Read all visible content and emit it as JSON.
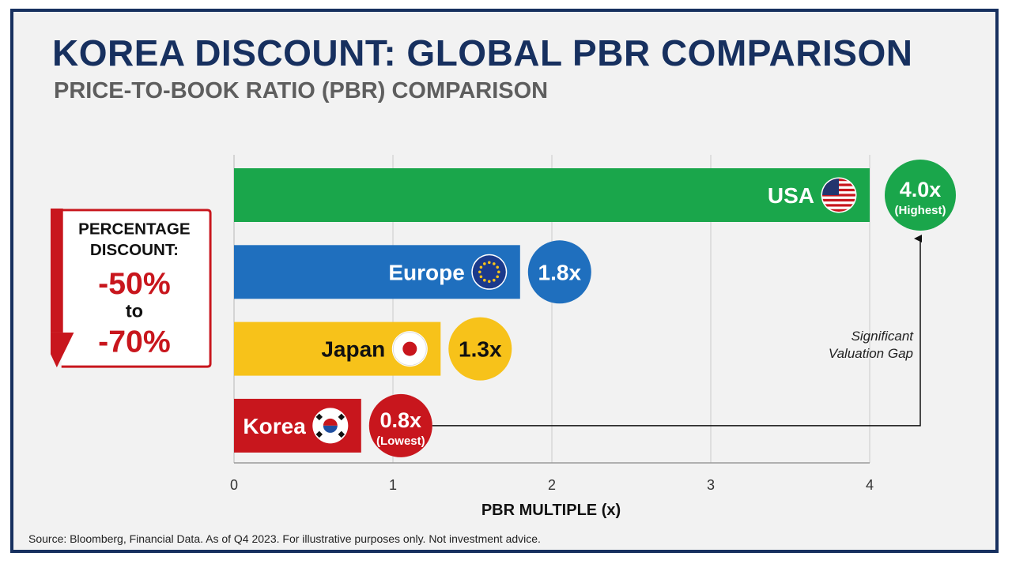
{
  "title": "KOREA DISCOUNT: GLOBAL PBR COMPARISON",
  "subtitle": "PRICE-TO-BOOK RATIO (PBR) COMPARISON",
  "source": "Source: Bloomberg, Financial Data. As of Q4 2023. For illustrative purposes only. Not investment advice.",
  "discount": {
    "heading_line1": "PERCENTAGE",
    "heading_line2": "DISCOUNT:",
    "from": "-50%",
    "joiner": "to",
    "to": "-70%"
  },
  "annotation": {
    "line1": "Significant",
    "line2": "Valuation Gap"
  },
  "colors": {
    "usa": "#1aa64b",
    "europe": "#1f6fbe",
    "japan": "#f7c21a",
    "korea": "#c8161d",
    "title": "#17305f",
    "arrow": "#c8161d"
  },
  "chart_data": {
    "type": "bar",
    "orientation": "horizontal",
    "categories": [
      "USA",
      "Europe",
      "Japan",
      "Korea"
    ],
    "values": [
      4.0,
      1.8,
      1.3,
      0.8
    ],
    "value_labels": [
      "4.0x",
      "1.8x",
      "1.3x",
      "0.8x"
    ],
    "value_sublabels": [
      "(Highest)",
      "",
      "",
      "(Lowest)"
    ],
    "flags": [
      "us-flag-icon",
      "eu-flag-icon",
      "japan-flag-icon",
      "korea-flag-icon"
    ],
    "xlabel": "PBR MULTIPLE (x)",
    "xticks": [
      "0",
      "1",
      "2",
      "3",
      "4"
    ],
    "xlim": [
      0,
      4
    ],
    "grid": true
  }
}
